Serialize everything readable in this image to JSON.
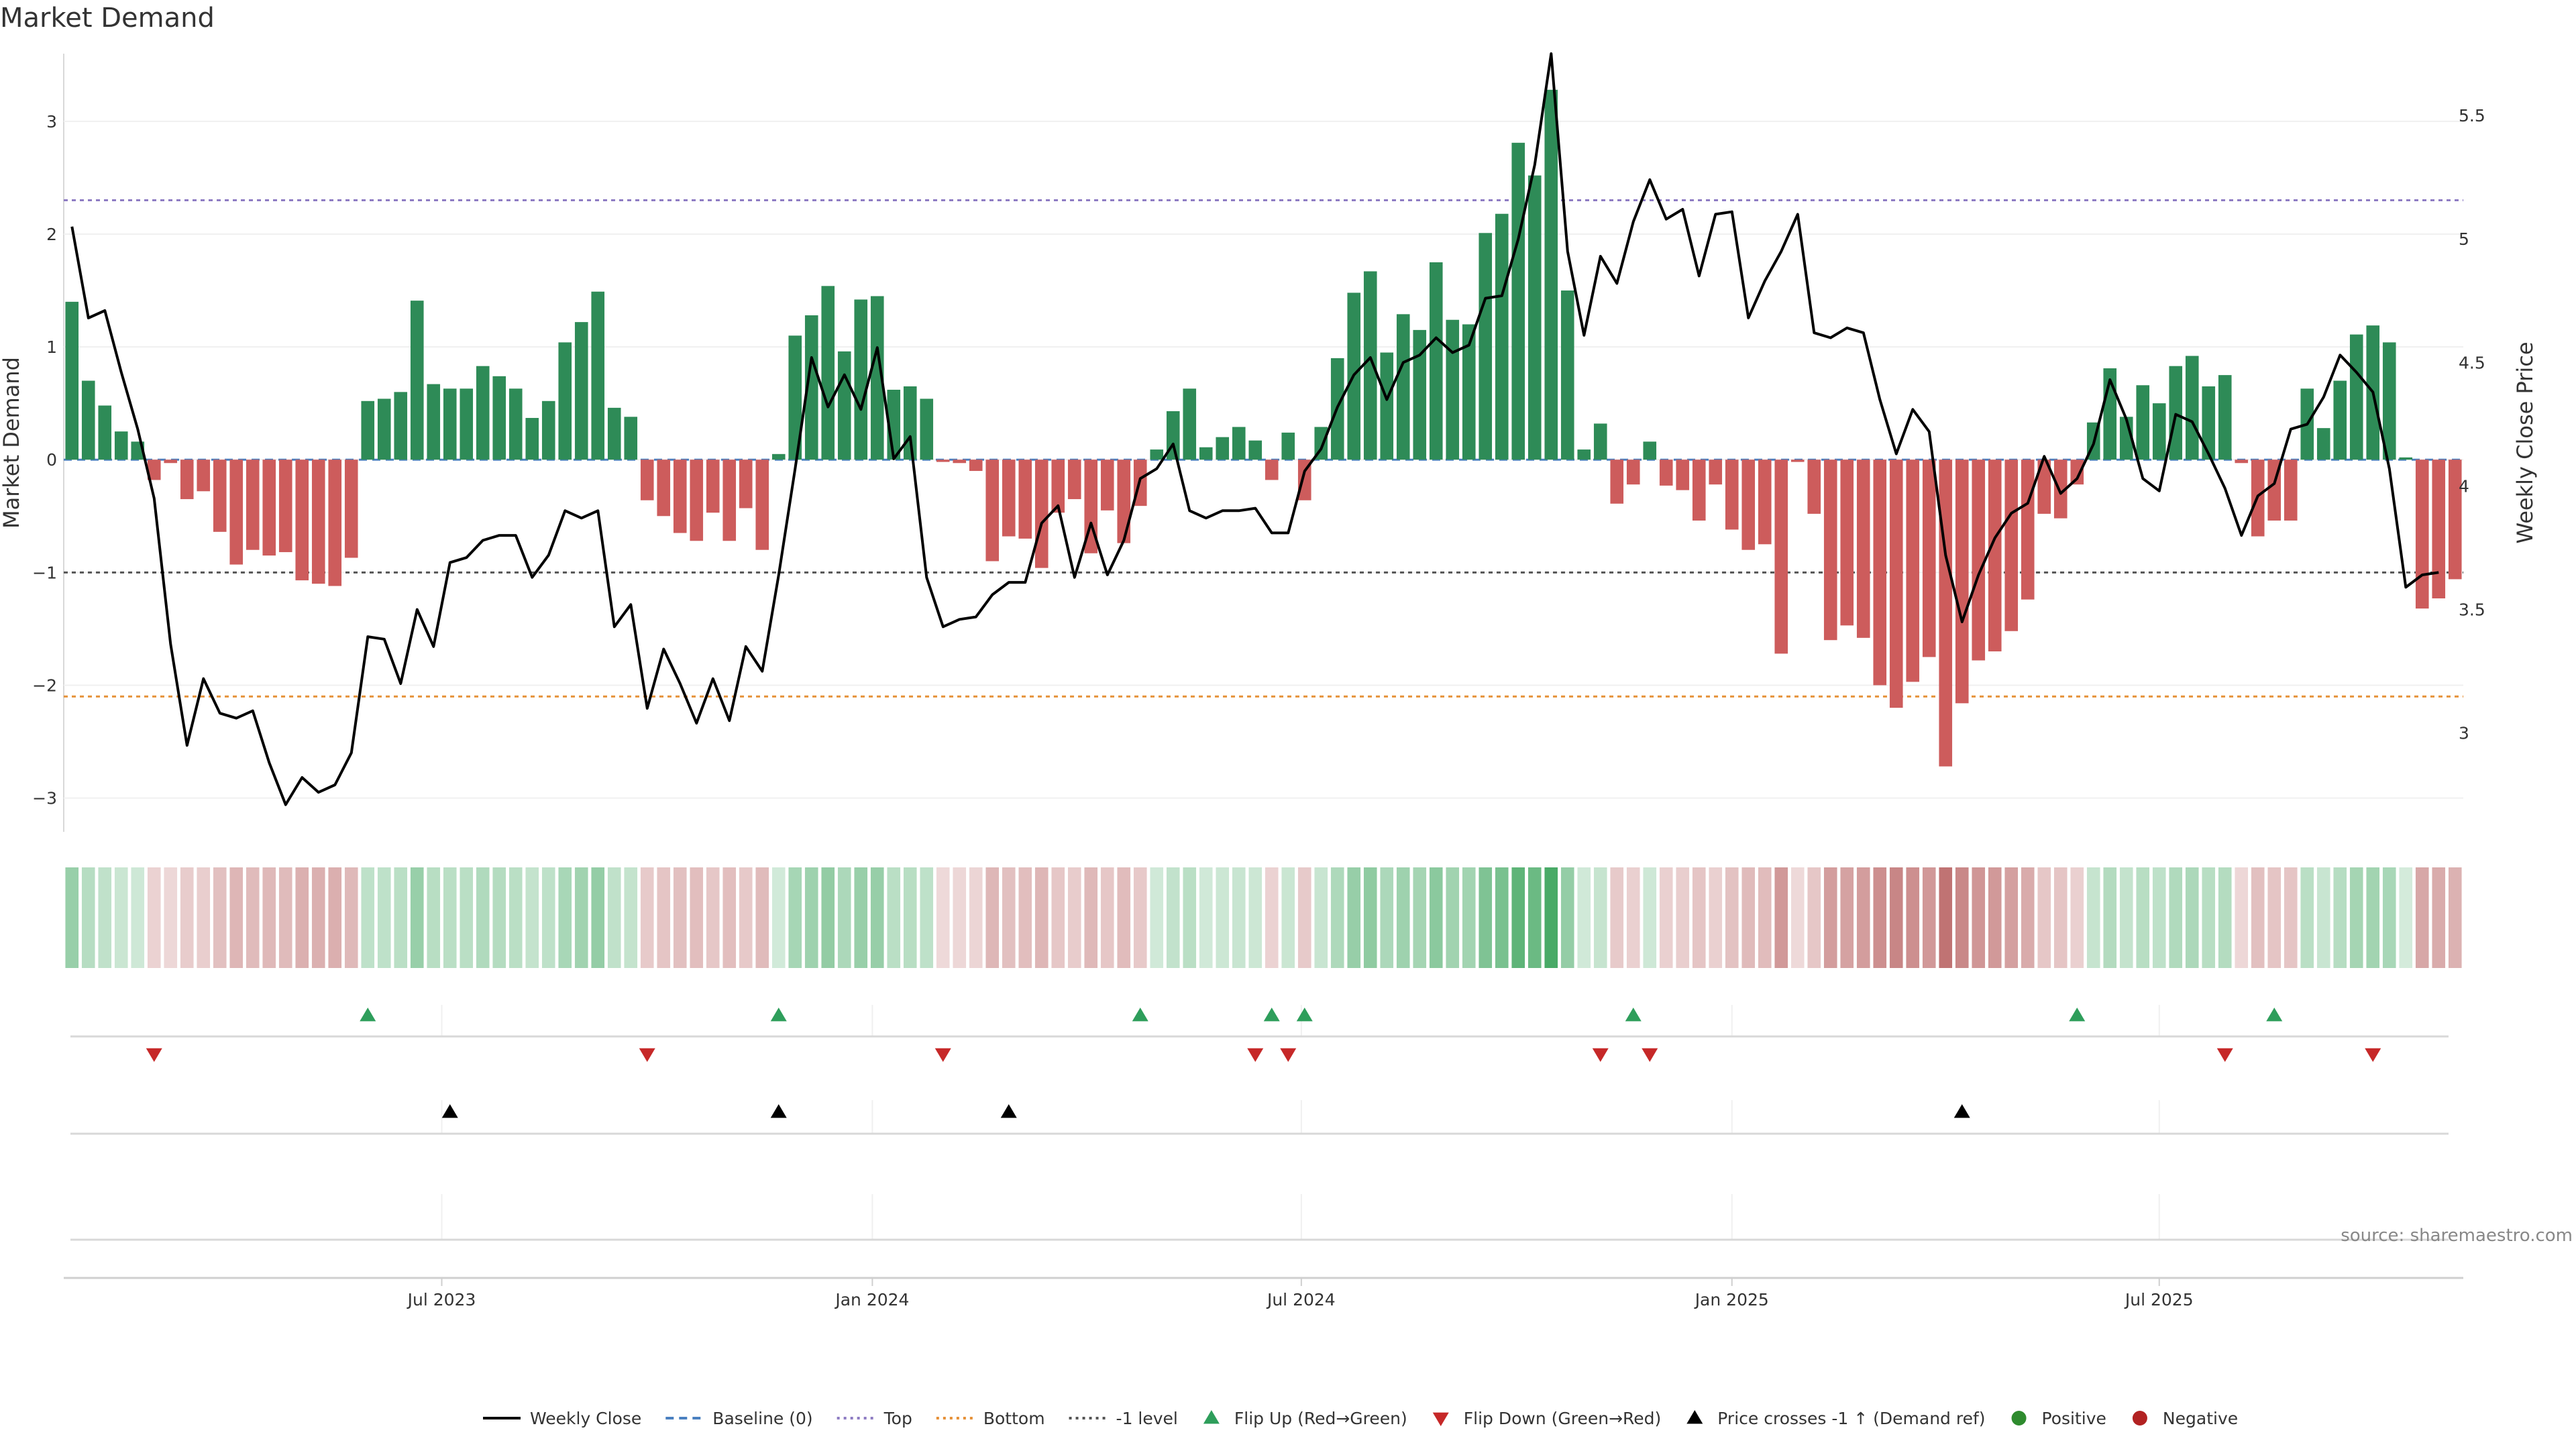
{
  "chart_data": {
    "type": "bar",
    "title": "Market Demand",
    "ylabel_left": "Market Demand",
    "ylabel_right": "Weekly Close Price",
    "source": "source: sharemaestro.com",
    "ylim_left": [
      -3.3,
      3.6
    ],
    "ylim_right": [
      2.6,
      5.75
    ],
    "left_ticks": [
      {
        "v": 3,
        "label": "3"
      },
      {
        "v": 2,
        "label": "2"
      },
      {
        "v": 1,
        "label": "1"
      },
      {
        "v": 0,
        "label": "0"
      },
      {
        "v": -1,
        "label": "−1"
      },
      {
        "v": -2,
        "label": "−2"
      },
      {
        "v": -3,
        "label": "−3"
      }
    ],
    "right_ticks": [
      {
        "v": 5.5,
        "label": "5.5"
      },
      {
        "v": 5,
        "label": "5"
      },
      {
        "v": 4.5,
        "label": "4.5"
      },
      {
        "v": 4,
        "label": "4"
      },
      {
        "v": 3.5,
        "label": "3.5"
      },
      {
        "v": 3,
        "label": "3"
      }
    ],
    "x_ticks": [
      {
        "i": 22.5,
        "label": "Jul 2023"
      },
      {
        "i": 48.7,
        "label": "Jan 2024"
      },
      {
        "i": 74.8,
        "label": "Jul 2024"
      },
      {
        "i": 101.0,
        "label": "Jan 2025"
      },
      {
        "i": 127.0,
        "label": "Jul 2025"
      }
    ],
    "reference_lines": {
      "top": 2.3,
      "bottom": -2.1,
      "minus_one": -1.0,
      "baseline": 0
    },
    "demand": [
      1.4,
      0.7,
      0.48,
      0.25,
      0.16,
      -0.18,
      -0.03,
      -0.35,
      -0.28,
      -0.64,
      -0.93,
      -0.8,
      -0.85,
      -0.82,
      -1.07,
      -1.1,
      -1.12,
      -0.87,
      0.52,
      0.54,
      0.6,
      1.41,
      0.67,
      0.63,
      0.63,
      0.83,
      0.74,
      0.63,
      0.37,
      0.52,
      1.04,
      1.22,
      1.49,
      0.46,
      0.38,
      -0.36,
      -0.5,
      -0.65,
      -0.72,
      -0.47,
      -0.72,
      -0.43,
      -0.8,
      0.05,
      1.1,
      1.28,
      1.54,
      0.96,
      1.42,
      1.45,
      0.62,
      0.65,
      0.54,
      -0.02,
      -0.03,
      -0.1,
      -0.9,
      -0.68,
      -0.7,
      -0.96,
      -0.47,
      -0.35,
      -0.83,
      -0.45,
      -0.74,
      -0.41,
      0.09,
      0.43,
      0.63,
      0.11,
      0.2,
      0.29,
      0.17,
      -0.18,
      0.24,
      -0.36,
      0.29,
      0.9,
      1.48,
      1.67,
      0.95,
      1.29,
      1.15,
      1.75,
      1.24,
      1.2,
      2.01,
      2.18,
      2.81,
      2.52,
      3.28,
      1.5,
      0.09,
      0.32,
      -0.39,
      -0.22,
      0.16,
      -0.23,
      -0.27,
      -0.54,
      -0.22,
      -0.62,
      -0.8,
      -0.75,
      -1.72,
      -0.02,
      -0.48,
      -1.6,
      -1.47,
      -1.58,
      -2.0,
      -2.2,
      -1.97,
      -1.75,
      -2.72,
      -2.16,
      -1.78,
      -1.7,
      -1.52,
      -1.24,
      -0.48,
      -0.52,
      -0.22,
      0.33,
      0.81,
      0.38,
      0.66,
      0.5,
      0.83,
      0.92,
      0.65,
      0.75,
      -0.03,
      -0.68,
      -0.54,
      -0.54,
      0.63,
      0.28,
      0.7,
      1.11,
      1.19,
      1.04,
      0.02,
      -1.32,
      -1.23,
      -1.06
    ],
    "close": [
      5.05,
      4.68,
      4.71,
      4.46,
      4.23,
      3.95,
      3.36,
      2.95,
      3.22,
      3.08,
      3.06,
      3.09,
      2.88,
      2.71,
      2.82,
      2.76,
      2.79,
      2.92,
      3.39,
      3.38,
      3.2,
      3.5,
      3.35,
      3.69,
      3.71,
      3.78,
      3.8,
      3.8,
      3.63,
      3.72,
      3.9,
      3.87,
      3.9,
      3.43,
      3.52,
      3.1,
      3.34,
      3.2,
      3.04,
      3.22,
      3.05,
      3.35,
      3.25,
      3.64,
      4.07,
      4.52,
      4.32,
      4.45,
      4.31,
      4.56,
      4.11,
      4.2,
      3.63,
      3.43,
      3.46,
      3.47,
      3.56,
      3.61,
      3.61,
      3.85,
      3.92,
      3.63,
      3.85,
      3.64,
      3.78,
      4.03,
      4.07,
      4.17,
      3.9,
      3.87,
      3.9,
      3.9,
      3.91,
      3.81,
      3.81,
      4.06,
      4.15,
      4.32,
      4.45,
      4.52,
      4.35,
      4.5,
      4.53,
      4.6,
      4.54,
      4.57,
      4.76,
      4.77,
      5.0,
      5.3,
      5.75,
      4.95,
      4.61,
      4.93,
      4.82,
      5.07,
      5.24,
      5.08,
      5.12,
      4.85,
      5.1,
      5.11,
      4.68,
      4.83,
      4.95,
      5.1,
      4.62,
      4.6,
      4.64,
      4.62,
      4.35,
      4.13,
      4.31,
      4.22,
      3.72,
      3.45,
      3.64,
      3.79,
      3.89,
      3.93,
      4.12,
      3.97,
      4.03,
      4.17,
      4.43,
      4.27,
      4.03,
      3.98,
      4.29,
      4.26,
      4.13,
      3.99,
      3.8,
      3.96,
      4.01,
      4.23,
      4.25,
      4.36,
      4.53,
      4.46,
      4.38,
      4.07,
      3.59,
      3.64,
      3.65
    ],
    "flip_up_idx": [
      18,
      43,
      65,
      73,
      75,
      95,
      122,
      134
    ],
    "flip_down_idx": [
      5,
      35,
      53,
      72,
      74,
      93,
      96,
      131,
      140
    ],
    "cross_idx": [
      23,
      43,
      57,
      115
    ]
  },
  "legend": [
    {
      "kind": "line",
      "label": "Weekly Close",
      "color": "#000000"
    },
    {
      "kind": "dash",
      "label": "Baseline (0)",
      "color": "#4a80c0"
    },
    {
      "kind": "dot",
      "label": "Top",
      "color": "#8e7cc3"
    },
    {
      "kind": "dot",
      "label": "Bottom",
      "color": "#e69138"
    },
    {
      "kind": "dot",
      "label": "-1 level",
      "color": "#555555"
    },
    {
      "kind": "tri-up",
      "label": "Flip Up (Red→Green)",
      "color": "#2e9e5b"
    },
    {
      "kind": "tri-down",
      "label": "Flip Down (Green→Red)",
      "color": "#c62828"
    },
    {
      "kind": "tri-up",
      "label": "Price crosses -1 ↑ (Demand ref)",
      "color": "#000000"
    },
    {
      "kind": "dot-circle",
      "label": "Positive",
      "color": "#2e8b2e"
    },
    {
      "kind": "dot-circle",
      "label": "Negative",
      "color": "#b22222"
    }
  ],
  "colors": {
    "positive": "#2e8b57",
    "negative": "#cd5c5c",
    "heat_pos": "#3aa35a",
    "heat_neg": "#b05050"
  }
}
